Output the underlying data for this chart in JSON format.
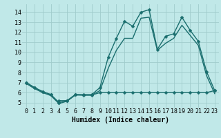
{
  "xlabel": "Humidex (Indice chaleur)",
  "bg_color": "#c0e8e8",
  "grid_color": "#a0cccc",
  "line_color": "#1a6e6e",
  "xlim": [
    -0.5,
    23.5
  ],
  "ylim": [
    4.5,
    14.8
  ],
  "xticks": [
    0,
    1,
    2,
    3,
    4,
    5,
    6,
    7,
    8,
    9,
    10,
    11,
    12,
    13,
    14,
    15,
    16,
    17,
    18,
    19,
    20,
    21,
    22,
    23
  ],
  "yticks": [
    5,
    6,
    7,
    8,
    9,
    10,
    11,
    12,
    13,
    14
  ],
  "series1_x": [
    0,
    1,
    2,
    3,
    4,
    5,
    6,
    7,
    8,
    9,
    10,
    11,
    12,
    13,
    14,
    15,
    16,
    17,
    18,
    19,
    20,
    21,
    22,
    23
  ],
  "series1_y": [
    7.0,
    6.5,
    6.1,
    5.8,
    5.0,
    5.2,
    5.8,
    5.8,
    5.8,
    6.5,
    9.5,
    11.4,
    13.1,
    12.6,
    14.0,
    14.25,
    10.3,
    11.6,
    11.85,
    13.5,
    12.2,
    11.1,
    8.1,
    6.2
  ],
  "series2_x": [
    0,
    1,
    2,
    3,
    4,
    5,
    6,
    7,
    8,
    9,
    10,
    11,
    12,
    13,
    14,
    15,
    16,
    17,
    18,
    19,
    20,
    21,
    22,
    23
  ],
  "series2_y": [
    6.9,
    6.4,
    6.0,
    5.7,
    4.9,
    5.15,
    5.75,
    5.75,
    5.75,
    6.2,
    8.4,
    10.2,
    11.4,
    11.4,
    13.4,
    13.5,
    10.2,
    10.9,
    11.4,
    12.7,
    11.7,
    10.7,
    7.7,
    5.9
  ],
  "series3_x": [
    0,
    1,
    2,
    3,
    4,
    4,
    5,
    6,
    7,
    8,
    9,
    10,
    11,
    12,
    13,
    14,
    15,
    16,
    17,
    18,
    19,
    20,
    21,
    22,
    23
  ],
  "series3_y": [
    7.0,
    6.5,
    6.1,
    5.8,
    5.0,
    5.2,
    5.2,
    5.8,
    5.75,
    5.75,
    6.0,
    6.0,
    6.0,
    6.0,
    6.0,
    6.0,
    6.0,
    6.0,
    6.0,
    6.0,
    6.0,
    6.0,
    6.0,
    6.0,
    6.2
  ],
  "marker_size": 2.5,
  "line_width": 1.0,
  "xlabel_fontsize": 7,
  "tick_fontsize": 6
}
